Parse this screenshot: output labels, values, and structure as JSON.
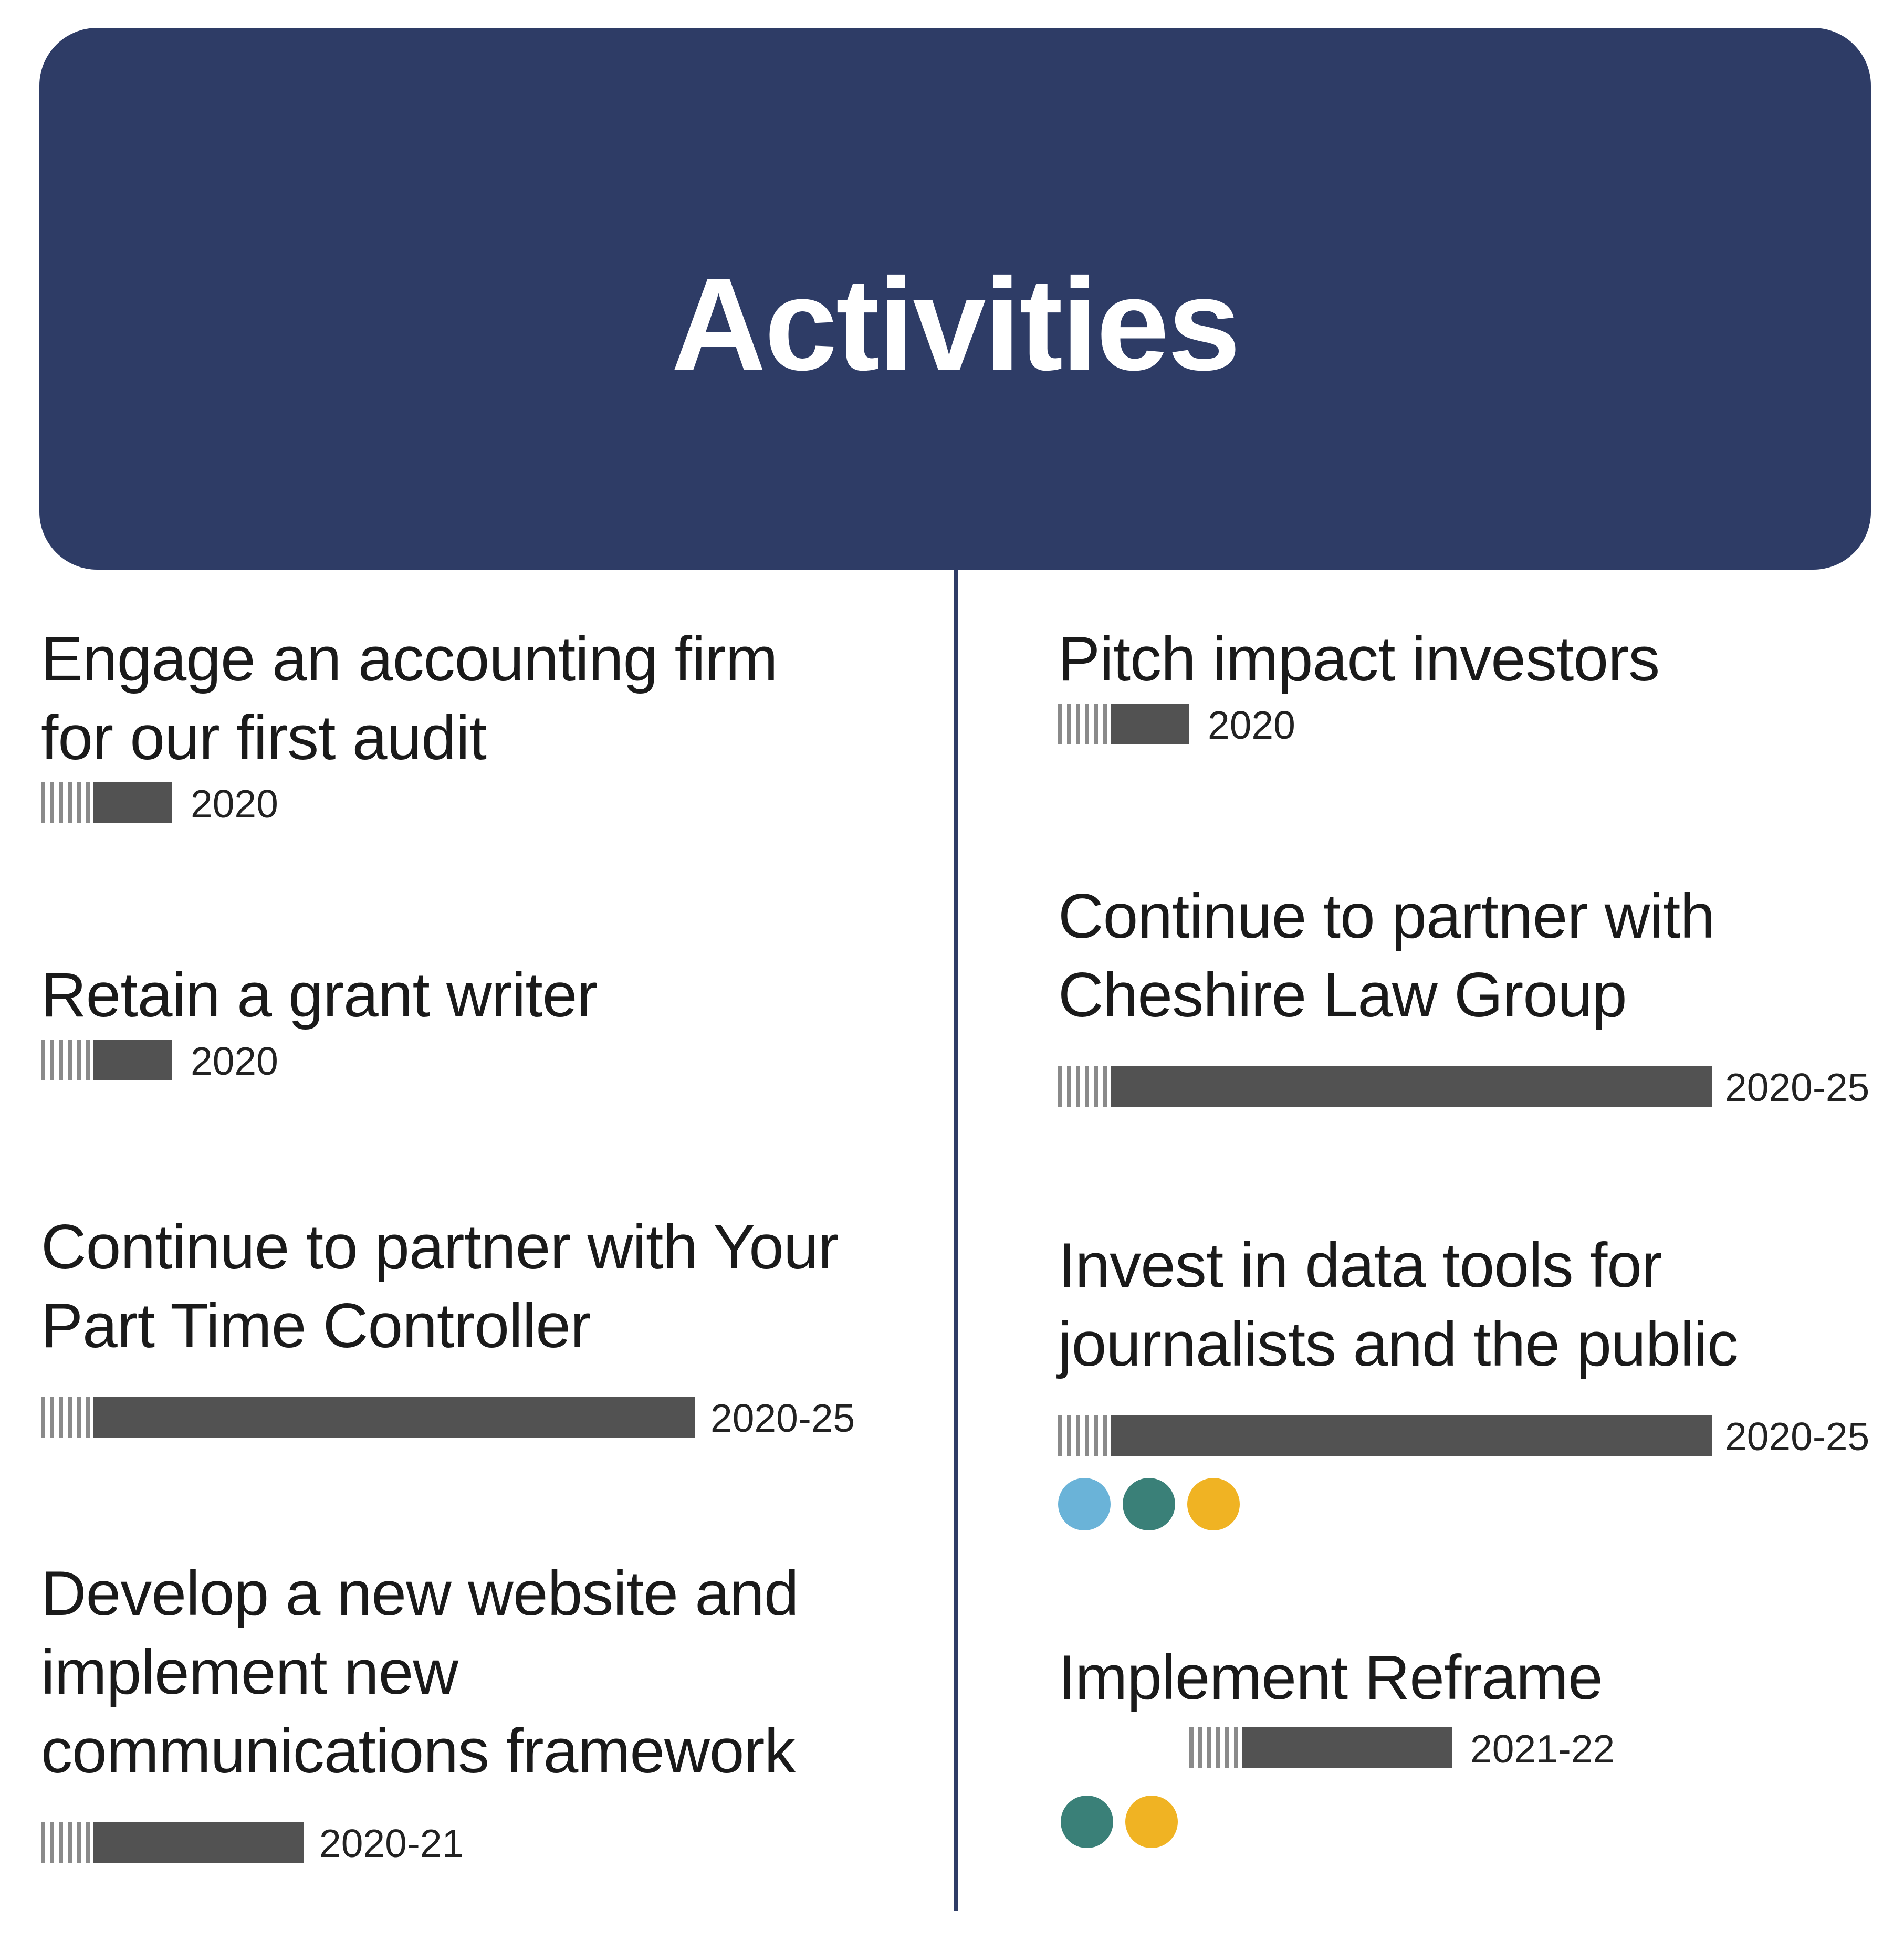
{
  "header": {
    "title": "Activities"
  },
  "colors": {
    "header_bg": "#2e3c66",
    "bar": "#525252",
    "stripes": "#8a8a8a",
    "dot_light_blue": "#6ab3d8",
    "dot_teal": "#3a8078",
    "dot_yellow": "#f0b323"
  },
  "left_activities": [
    {
      "title": "Engage an accounting firm for our first audit",
      "timeline": "2020",
      "span": 1
    },
    {
      "title": "Retain a grant writer",
      "timeline": "2020",
      "span": 1
    },
    {
      "title": "Continue to partner with Your Part Time Controller",
      "timeline": "2020-25",
      "span": 6
    },
    {
      "title": "Develop a new website and implement new communications framework",
      "timeline": "2020-21",
      "span": 2
    }
  ],
  "right_activities": [
    {
      "title": "Pitch impact investors",
      "timeline": "2020",
      "span": 1
    },
    {
      "title": "Continue to partner with Cheshire Law Group",
      "timeline": "2020-25",
      "span": 6
    },
    {
      "title": "Invest in data tools for journalists and the public",
      "timeline": "2020-25",
      "span": 6,
      "dots": [
        "dot_light_blue",
        "dot_teal",
        "dot_yellow"
      ]
    },
    {
      "title": "Implement Reframe",
      "timeline": "2021-22",
      "span": 2,
      "start_offset": 1,
      "dots": [
        "dot_teal",
        "dot_yellow"
      ]
    }
  ]
}
